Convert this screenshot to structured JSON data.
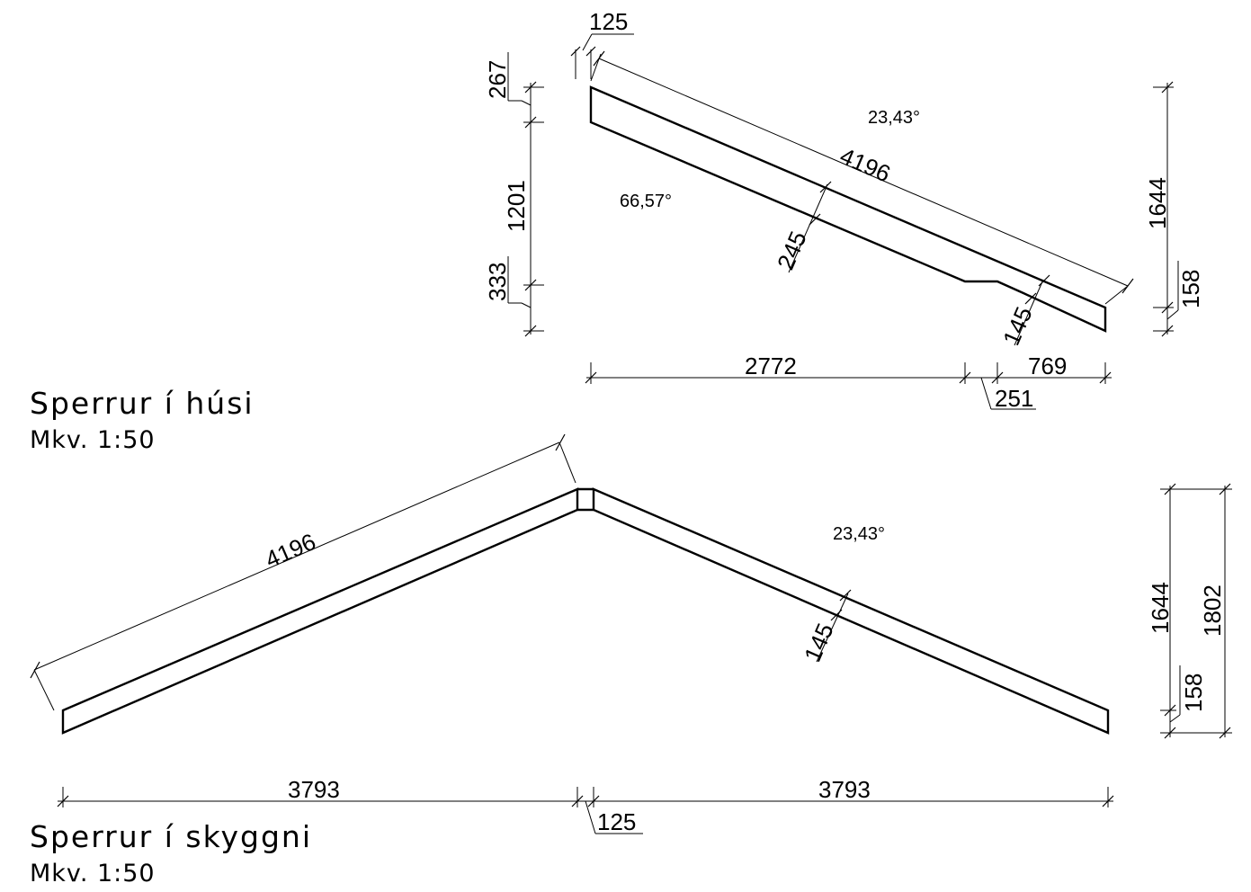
{
  "house": {
    "title": "Sperrur í húsi",
    "scale": "Mkv. 1:50",
    "angle_top": "23,43°",
    "angle_side": "66,57°",
    "dim_length": "4196",
    "dim_depth": "245",
    "dim_depth_small": "145",
    "dim_ridge": "125",
    "dim_top_offset": "267",
    "dim_height_main": "1201",
    "dim_bottom_offset": "333",
    "dim_total_height": "1644",
    "dim_right_small": "158",
    "dim_run_main": "2772",
    "dim_notch": "251",
    "dim_run_end": "769"
  },
  "canopy": {
    "title": "Sperrur í skyggni",
    "scale": "Mkv. 1:50",
    "angle": "23,43°",
    "dim_length": "4196",
    "dim_depth": "145",
    "dim_height": "1644",
    "dim_height_total": "1802",
    "dim_small": "158",
    "dim_run_left": "3793",
    "dim_run_right": "3793",
    "dim_gap": "125"
  }
}
